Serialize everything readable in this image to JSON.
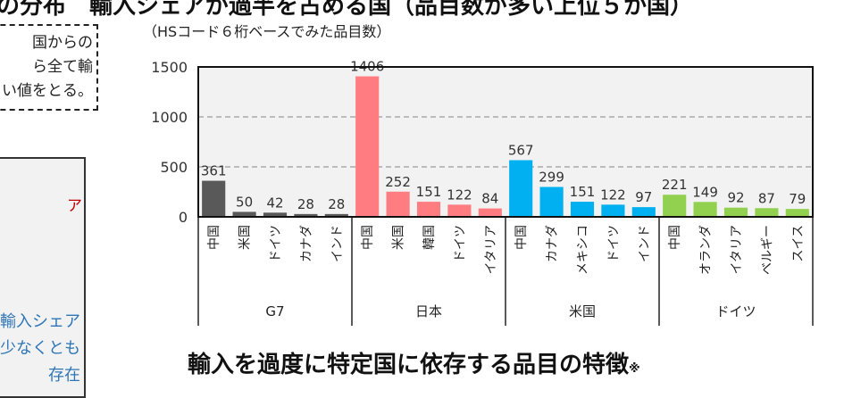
{
  "header": {
    "title": "の分布　輸入シェアが過半を占める国（品目数が多い上位５か国）"
  },
  "left_panel": {
    "dashed_box_lines": [
      "国からの",
      "ら全て輸",
      "い値をとる。"
    ],
    "red_text": "ア",
    "blue_lines": [
      "輸入シェア",
      "少なくとも",
      "存在"
    ]
  },
  "section_title": "輸入を過度に特定国に依存する品目の特徴",
  "section_title_mark": "※",
  "chart_data": {
    "type": "bar",
    "title": "（HSコード６桁ベースでみた品目数）",
    "ylim": [
      0,
      1500
    ],
    "yticks": [
      0,
      500,
      1000,
      1500
    ],
    "grid": true,
    "groups": [
      {
        "name": "G7",
        "color": "#595959",
        "categories": [
          "中国",
          "米国",
          "ドイツ",
          "カナダ",
          "インド"
        ],
        "values": [
          361,
          50,
          42,
          28,
          28
        ]
      },
      {
        "name": "日本",
        "color": "#ff7c80",
        "categories": [
          "中国",
          "米国",
          "韓国",
          "ドイツ",
          "イタリア"
        ],
        "values": [
          1406,
          252,
          151,
          122,
          84
        ]
      },
      {
        "name": "米国",
        "color": "#00b0f0",
        "categories": [
          "中国",
          "カナダ",
          "メキシコ",
          "ドイツ",
          "インド"
        ],
        "values": [
          567,
          299,
          151,
          122,
          97
        ]
      },
      {
        "name": "ドイツ",
        "color": "#92d050",
        "categories": [
          "中国",
          "オランダ",
          "イタリア",
          "ベルギー",
          "スイス"
        ],
        "values": [
          221,
          149,
          92,
          87,
          79
        ]
      }
    ]
  }
}
